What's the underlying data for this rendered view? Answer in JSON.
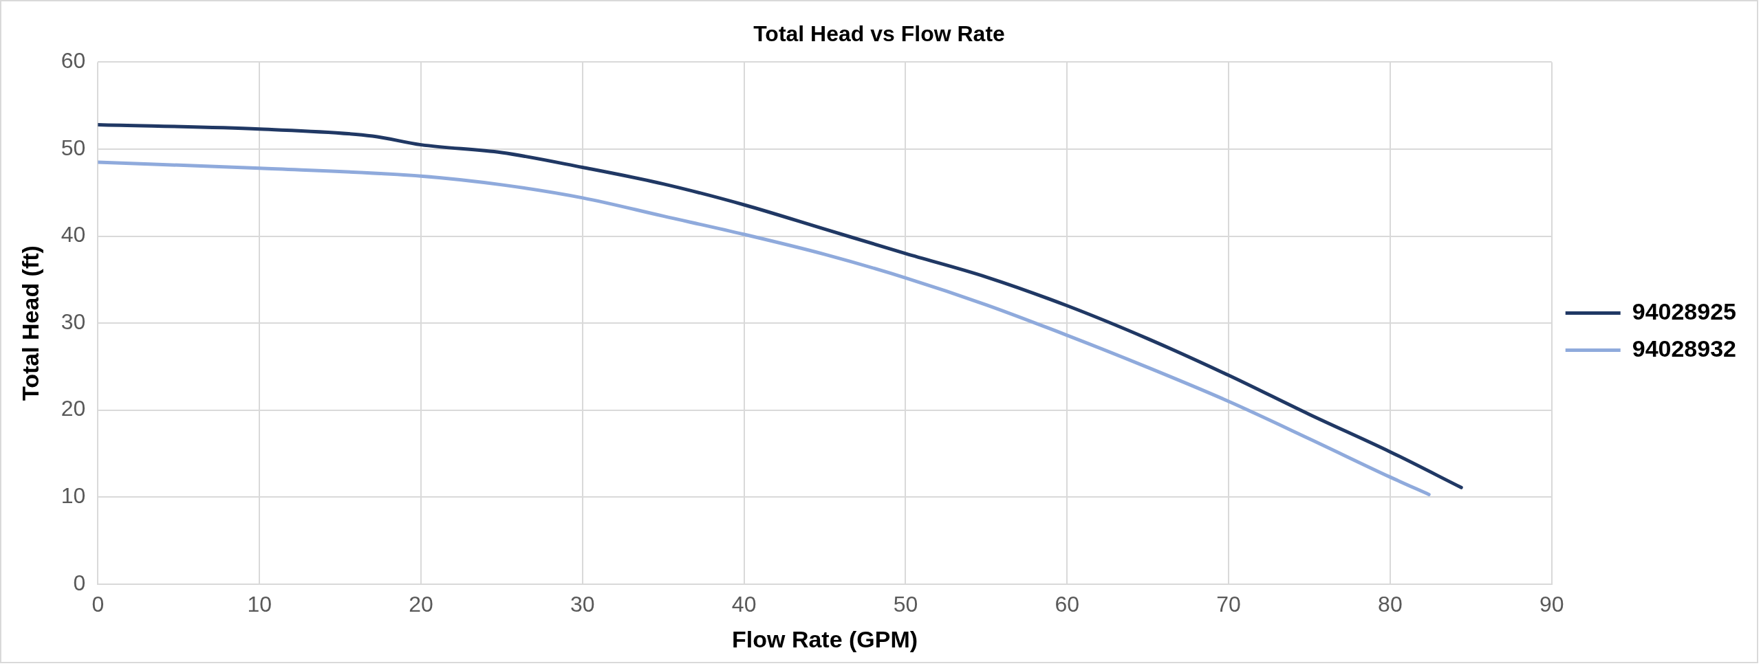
{
  "chart_data": {
    "type": "line",
    "title": "Total Head vs Flow Rate",
    "xlabel": "Flow Rate (GPM)",
    "ylabel": "Total Head (ft)",
    "xlim": [
      0,
      90
    ],
    "xticks": [
      0,
      10,
      20,
      30,
      40,
      50,
      60,
      70,
      80,
      90
    ],
    "ylim": [
      0,
      60
    ],
    "yticks": [
      0,
      10,
      20,
      30,
      40,
      50,
      60
    ],
    "grid": true,
    "legend": "right",
    "marker": "none",
    "line_style": "solid",
    "series": [
      {
        "name": "94028925",
        "color": "#203864",
        "x": [
          0,
          10,
          17,
          20,
          25,
          30,
          35,
          40,
          45,
          50,
          55,
          60,
          65,
          70,
          75,
          80,
          84.4
        ],
        "values": [
          52.8,
          52.3,
          51.5,
          50.5,
          49.6,
          47.9,
          46,
          43.6,
          40.8,
          38,
          35.3,
          32,
          28.2,
          24,
          19.5,
          15.2,
          11.1
        ]
      },
      {
        "name": "94028932",
        "color": "#8faadc",
        "x": [
          0,
          10,
          20,
          25,
          30,
          35,
          40,
          45,
          50,
          55,
          60,
          65,
          70,
          75,
          80,
          82.4
        ],
        "values": [
          48.5,
          47.8,
          46.9,
          45.9,
          44.4,
          42.3,
          40.2,
          37.9,
          35.2,
          32.1,
          28.6,
          24.9,
          21,
          16.7,
          12.3,
          10.3
        ]
      }
    ]
  }
}
